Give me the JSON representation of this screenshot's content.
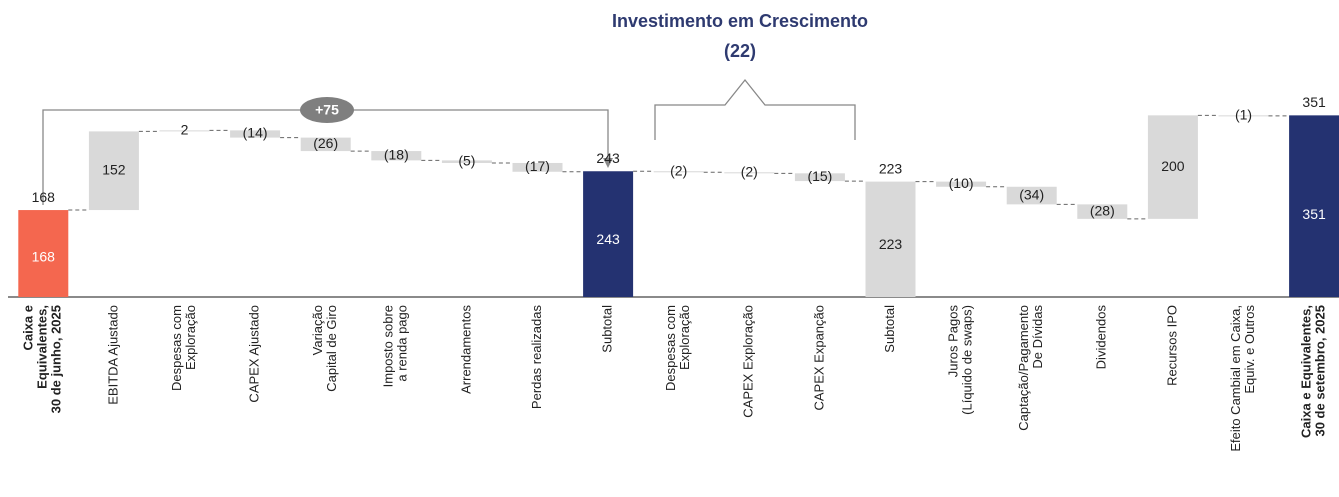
{
  "chart_data": {
    "type": "waterfall",
    "bracket_title": "Investimento em Crescimento",
    "bracket_label": "(22)",
    "arrow_label": "+75",
    "categories": [
      [
        "Caixa e",
        "Equivalentes,",
        "30 de junho, 2025"
      ],
      [
        "EBITDA Ajustado"
      ],
      [
        "Despesas com",
        "Exploração"
      ],
      [
        "CAPEX Ajustado"
      ],
      [
        "Variação",
        "Capital de Giro"
      ],
      [
        "Imposto sobre",
        "a renda pago"
      ],
      [
        "Arrendamentos"
      ],
      [
        "Perdas realizadas"
      ],
      [
        "Subtotal"
      ],
      [
        "Despesas com",
        "Exploração"
      ],
      [
        "CAPEX Exploração"
      ],
      [
        "CAPEX Expanção"
      ],
      [
        "Subtotal"
      ],
      [
        "Juros Pagos",
        "(Líquido de swaps)"
      ],
      [
        "Captação/Pagamento",
        "De Dívidas"
      ],
      [
        "Dividendos"
      ],
      [
        "Recursos IPO"
      ],
      [
        "Efeito Cambial em Caixa,",
        "Equiv. e Outros"
      ],
      [
        "Caixa e Equivalentes,",
        "30 de setembro, 2025"
      ]
    ],
    "values": [
      168,
      152,
      2,
      -14,
      -26,
      -18,
      -5,
      -17,
      243,
      -2,
      -2,
      -15,
      223,
      -10,
      -34,
      -28,
      200,
      -1,
      351
    ],
    "value_labels": [
      "168",
      "152",
      "2",
      "(14)",
      "(26)",
      "(18)",
      "(5)",
      "(17)",
      "243",
      "(2)",
      "(2)",
      "(15)",
      "223",
      "(10)",
      "(34)",
      "(28)",
      "200",
      "(1)",
      "351"
    ],
    "bar_types": [
      "total",
      "delta",
      "delta",
      "delta",
      "delta",
      "delta",
      "delta",
      "delta",
      "total",
      "delta",
      "delta",
      "delta",
      "total",
      "delta",
      "delta",
      "delta",
      "delta",
      "delta",
      "total"
    ],
    "colors": [
      "#f4674f",
      "#d9d9d9",
      "#d9d9d9",
      "#d9d9d9",
      "#d9d9d9",
      "#d9d9d9",
      "#d9d9d9",
      "#d9d9d9",
      "#243271",
      "#d9d9d9",
      "#d9d9d9",
      "#d9d9d9",
      "#d9d9d9",
      "#d9d9d9",
      "#d9d9d9",
      "#d9d9d9",
      "#d9d9d9",
      "#d9d9d9",
      "#243271"
    ],
    "ylim": [
      0,
      400
    ]
  }
}
